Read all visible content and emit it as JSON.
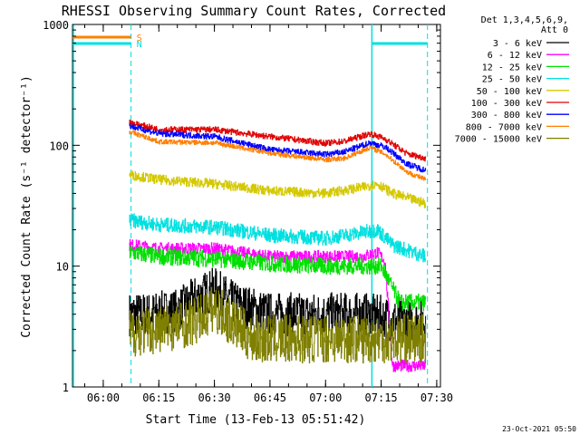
{
  "chart_data": {
    "type": "line",
    "title": "RHESSI Observing Summary Count Rates, Corrected",
    "xlabel": "Start Time (13-Feb-13 05:51:42)",
    "ylabel": "Corrected Count Rate (s⁻¹ detector⁻¹)",
    "yscale": "log",
    "ylim": [
      1,
      1000
    ],
    "xlim": [
      "05:51:42",
      "07:31:00"
    ],
    "x_ticks": [
      "06:00",
      "06:15",
      "06:30",
      "06:45",
      "07:00",
      "07:15",
      "07:30"
    ],
    "y_ticks": [
      "1",
      "10",
      "100",
      "1000"
    ],
    "legend_header": [
      "Det 1,3,4,5,6,9,",
      "Att 0"
    ],
    "legend_position": "outside-right",
    "timestamp": "23-Oct-2021 05:50",
    "flags": [
      {
        "label": "S",
        "color": "#ff7f00",
        "start": "05:51:42",
        "end": "06:07:30"
      },
      {
        "label": "N",
        "color": "#00e0e0",
        "start": "05:51:42",
        "end": "06:07:30"
      },
      {
        "label": "",
        "color": "#00e0e0",
        "start": "07:12:30",
        "end": "07:27:30"
      }
    ],
    "night_boundaries": [
      "06:07:30",
      "07:12:30",
      "07:27:30"
    ],
    "boundary_color": "#00e0e0",
    "series": [
      {
        "name": "3 - 6 keV",
        "color": "#000000",
        "noise": 0.18,
        "points": [
          [
            "06:07",
            "4"
          ],
          [
            "06:12",
            "4"
          ],
          [
            "06:20",
            "4.3"
          ],
          [
            "06:25",
            "5.5"
          ],
          [
            "06:30",
            "6.5"
          ],
          [
            "06:35",
            "5"
          ],
          [
            "06:45",
            "4"
          ],
          [
            "07:00",
            "4"
          ],
          [
            "07:10",
            "4"
          ],
          [
            "07:15",
            "3.8"
          ],
          [
            "07:20",
            "3.5"
          ],
          [
            "07:27",
            "3.5"
          ]
        ]
      },
      {
        "name": "6 - 12 keV",
        "color": "#ff00ff",
        "noise": 0.05,
        "points": [
          [
            "06:07",
            "15"
          ],
          [
            "06:15",
            "14"
          ],
          [
            "06:30",
            "14"
          ],
          [
            "06:45",
            "12"
          ],
          [
            "07:00",
            "12"
          ],
          [
            "07:10",
            "12"
          ],
          [
            "07:14",
            "13"
          ],
          [
            "07:16",
            "11"
          ],
          [
            "07:18",
            "1.5"
          ],
          [
            "07:27",
            "1.5"
          ]
        ]
      },
      {
        "name": "12 - 25 keV",
        "color": "#00e000",
        "noise": 0.07,
        "points": [
          [
            "06:07",
            "13"
          ],
          [
            "06:15",
            "12"
          ],
          [
            "06:30",
            "11.5"
          ],
          [
            "06:45",
            "10.5"
          ],
          [
            "07:00",
            "10"
          ],
          [
            "07:10",
            "10"
          ],
          [
            "07:15",
            "10"
          ],
          [
            "07:20",
            "5"
          ],
          [
            "07:27",
            "5"
          ]
        ]
      },
      {
        "name": "25 - 50 keV",
        "color": "#00e0e0",
        "noise": 0.06,
        "points": [
          [
            "06:07",
            "24"
          ],
          [
            "06:15",
            "22"
          ],
          [
            "06:30",
            "21"
          ],
          [
            "06:45",
            "18"
          ],
          [
            "07:00",
            "17"
          ],
          [
            "07:10",
            "19"
          ],
          [
            "07:14",
            "20"
          ],
          [
            "07:18",
            "15"
          ],
          [
            "07:27",
            "12"
          ]
        ]
      },
      {
        "name": "50 - 100 keV",
        "color": "#d4c800",
        "noise": 0.04,
        "points": [
          [
            "06:07",
            "57"
          ],
          [
            "06:15",
            "52"
          ],
          [
            "06:30",
            "48"
          ],
          [
            "06:45",
            "42"
          ],
          [
            "07:00",
            "40"
          ],
          [
            "07:10",
            "45"
          ],
          [
            "07:14",
            "48"
          ],
          [
            "07:18",
            "40"
          ],
          [
            "07:27",
            "33"
          ]
        ]
      },
      {
        "name": "100 - 300 keV",
        "color": "#e00000",
        "noise": 0.025,
        "points": [
          [
            "06:07",
            "155"
          ],
          [
            "06:15",
            "135"
          ],
          [
            "06:30",
            "135"
          ],
          [
            "06:45",
            "118"
          ],
          [
            "07:00",
            "104"
          ],
          [
            "07:05",
            "108"
          ],
          [
            "07:12",
            "125"
          ],
          [
            "07:16",
            "113"
          ],
          [
            "07:22",
            "85"
          ],
          [
            "07:27",
            "78"
          ]
        ]
      },
      {
        "name": "300 - 800 keV",
        "color": "#0000ff",
        "noise": 0.025,
        "points": [
          [
            "06:07",
            "145"
          ],
          [
            "06:15",
            "125"
          ],
          [
            "06:30",
            "118"
          ],
          [
            "06:45",
            "92"
          ],
          [
            "07:00",
            "84"
          ],
          [
            "07:05",
            "88"
          ],
          [
            "07:12",
            "105"
          ],
          [
            "07:16",
            "97"
          ],
          [
            "07:22",
            "70"
          ],
          [
            "07:27",
            "62"
          ]
        ]
      },
      {
        "name": "800 - 7000 keV",
        "color": "#ff7f00",
        "noise": 0.02,
        "points": [
          [
            "06:07",
            "130"
          ],
          [
            "06:15",
            "107"
          ],
          [
            "06:30",
            "105"
          ],
          [
            "06:45",
            "86"
          ],
          [
            "07:00",
            "76"
          ],
          [
            "07:05",
            "78"
          ],
          [
            "07:12",
            "96"
          ],
          [
            "07:16",
            "85"
          ],
          [
            "07:22",
            "60"
          ],
          [
            "07:27",
            "52"
          ]
        ]
      },
      {
        "name": "7000 - 15000 keV",
        "color": "#7f7f00",
        "noise": 0.2,
        "points": [
          [
            "06:07",
            "2.8"
          ],
          [
            "06:15",
            "3"
          ],
          [
            "06:25",
            "3.5"
          ],
          [
            "06:30",
            "4.5"
          ],
          [
            "06:40",
            "2.5"
          ],
          [
            "06:48",
            "2.5"
          ],
          [
            "07:00",
            "2.5"
          ],
          [
            "07:10",
            "2.5"
          ],
          [
            "07:20",
            "2.5"
          ],
          [
            "07:27",
            "2.5"
          ]
        ]
      }
    ]
  }
}
